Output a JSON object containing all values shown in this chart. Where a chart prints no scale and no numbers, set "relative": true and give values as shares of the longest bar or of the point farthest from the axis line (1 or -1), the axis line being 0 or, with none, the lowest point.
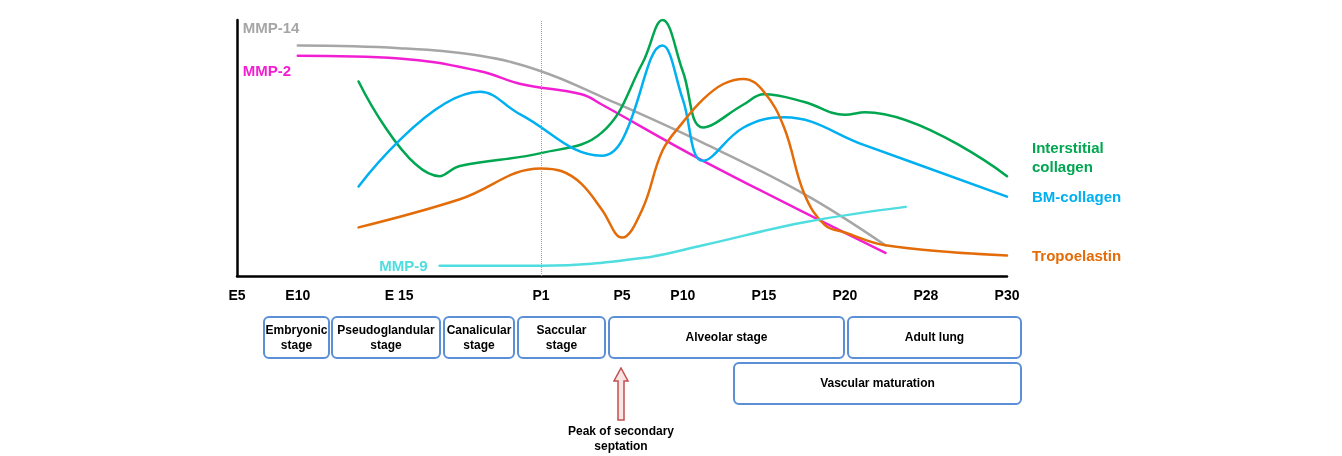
{
  "chart_data": {
    "type": "line",
    "relative": true,
    "legend": false,
    "grid": false,
    "marker": "none",
    "line_style": "solid",
    "categories": [
      "E5",
      null,
      null,
      "E10",
      null,
      null,
      null,
      null,
      "E 15",
      null,
      null,
      null,
      null,
      null,
      null,
      "P1",
      null,
      null,
      null,
      "P5",
      null,
      null,
      "P10",
      null,
      null,
      null,
      "P15",
      null,
      null,
      null,
      "P20",
      null,
      null,
      null,
      "P28",
      null,
      null,
      null,
      "P30"
    ],
    "ref_lines": [
      {
        "axis": "x",
        "value": "P1",
        "label": null,
        "color": "#a0a0a0",
        "line_style": "dotted"
      }
    ],
    "series": [
      {
        "name": "MMP-14",
        "color": "#a6a6a6",
        "values": [
          null,
          null,
          null,
          0.9,
          null,
          null,
          null,
          null,
          0.89,
          null,
          null,
          null,
          0.86,
          null,
          null,
          0.8,
          null,
          null,
          0.7,
          null,
          null,
          null,
          null,
          0.52,
          null,
          null,
          null,
          null,
          0.32,
          null,
          null,
          null,
          0.12,
          null,
          null,
          null,
          null,
          null,
          null
        ]
      },
      {
        "name": "MMP-2",
        "color": "#f21fd2",
        "values": [
          null,
          null,
          null,
          0.86,
          null,
          null,
          null,
          null,
          0.85,
          null,
          null,
          null,
          0.8,
          null,
          0.75,
          null,
          null,
          0.71,
          0.67,
          null,
          null,
          null,
          null,
          0.45,
          null,
          null,
          null,
          null,
          null,
          null,
          null,
          null,
          0.09,
          null,
          null,
          null,
          null,
          null,
          null
        ]
      },
      {
        "name": "Interstitial collagen",
        "color": "#00a650",
        "values": [
          null,
          null,
          null,
          null,
          null,
          null,
          0.76,
          null,
          null,
          null,
          0.39,
          0.43,
          null,
          null,
          null,
          0.48,
          null,
          null,
          0.56,
          null,
          0.83,
          1,
          0.8,
          0.58,
          null,
          0.67,
          0.71,
          null,
          0.68,
          null,
          0.63,
          0.64,
          null,
          null,
          null,
          null,
          null,
          null,
          0.39
        ]
      },
      {
        "name": "BM-collagen",
        "color": "#00b0f0",
        "values": [
          null,
          null,
          null,
          null,
          null,
          null,
          0.35,
          null,
          null,
          null,
          null,
          null,
          0.72,
          null,
          0.63,
          null,
          null,
          null,
          0.47,
          0.53,
          null,
          0.9,
          0.69,
          0.45,
          null,
          0.58,
          null,
          0.62,
          null,
          null,
          null,
          0.51,
          null,
          null,
          null,
          null,
          null,
          null,
          0.31
        ]
      },
      {
        "name": "Tropoelastin",
        "color": "#e36c09",
        "values": [
          null,
          null,
          null,
          null,
          null,
          null,
          0.19,
          null,
          null,
          null,
          null,
          0.3,
          null,
          null,
          null,
          0.42,
          0.41,
          0.36,
          0.26,
          0.15,
          0.26,
          0.49,
          0.6,
          0.69,
          0.75,
          0.77,
          0.72,
          0.58,
          0.32,
          0.2,
          0.17,
          null,
          0.12,
          null,
          null,
          null,
          null,
          null,
          0.08
        ]
      },
      {
        "name": "MMP-9",
        "color": "#4fdde0",
        "values": [
          null,
          null,
          null,
          null,
          null,
          null,
          null,
          null,
          null,
          null,
          0.04,
          null,
          null,
          null,
          null,
          0.04,
          null,
          null,
          null,
          null,
          0.07,
          null,
          null,
          0.12,
          null,
          null,
          null,
          null,
          0.21,
          null,
          null,
          null,
          null,
          0.27,
          null,
          null,
          null,
          null,
          null
        ]
      }
    ],
    "annotations": [
      "Embryonic stage",
      "Pseudoglandular stage",
      "Canalicular stage",
      "Saccular stage",
      "Alveolar stage",
      "Adult lung",
      "Vascular  maturation",
      "Peak of secondary septation"
    ]
  }
}
